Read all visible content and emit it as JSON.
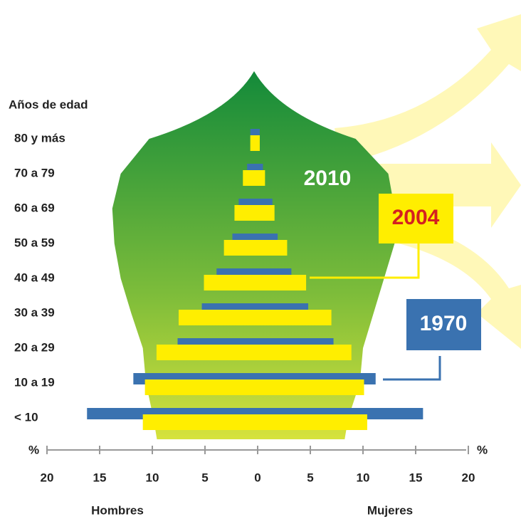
{
  "chart_data": {
    "type": "pyramid",
    "axis_title": "Años de edad",
    "categories": [
      "< 10",
      "10 a 19",
      "20 a 29",
      "30 a 39",
      "40 a 49",
      "50 a 59",
      "60 a 69",
      "70 a 79",
      "80 y más"
    ],
    "series": [
      {
        "name": "2010",
        "color": "#2f9a3e",
        "men": [
          9.9,
          10.6,
          10.9,
          12.0,
          13.0,
          13.6,
          13.8,
          13.0,
          10.3
        ],
        "women": [
          8.6,
          9.7,
          10.0,
          11.0,
          12.0,
          13.0,
          13.0,
          12.4,
          9.3
        ]
      },
      {
        "name": "1970",
        "color": "#3a72b0",
        "men": [
          16.2,
          11.8,
          7.6,
          5.3,
          3.9,
          2.4,
          1.8,
          1.0,
          0.7
        ],
        "women": [
          15.7,
          11.2,
          7.2,
          4.8,
          3.2,
          1.9,
          1.4,
          0.5,
          0.2
        ]
      },
      {
        "name": "2004",
        "color": "#ffee00",
        "men": [
          10.9,
          10.7,
          9.6,
          7.5,
          5.1,
          3.2,
          2.2,
          1.4,
          0.7
        ],
        "women": [
          10.4,
          10.1,
          8.9,
          7.0,
          4.6,
          2.8,
          1.6,
          0.7,
          0.2
        ]
      }
    ],
    "xlim": [
      0,
      20
    ],
    "xticks": [
      0,
      5,
      10,
      15,
      20
    ],
    "x_unit": "%",
    "left_label": "Hombres",
    "right_label": "Mujeres"
  }
}
